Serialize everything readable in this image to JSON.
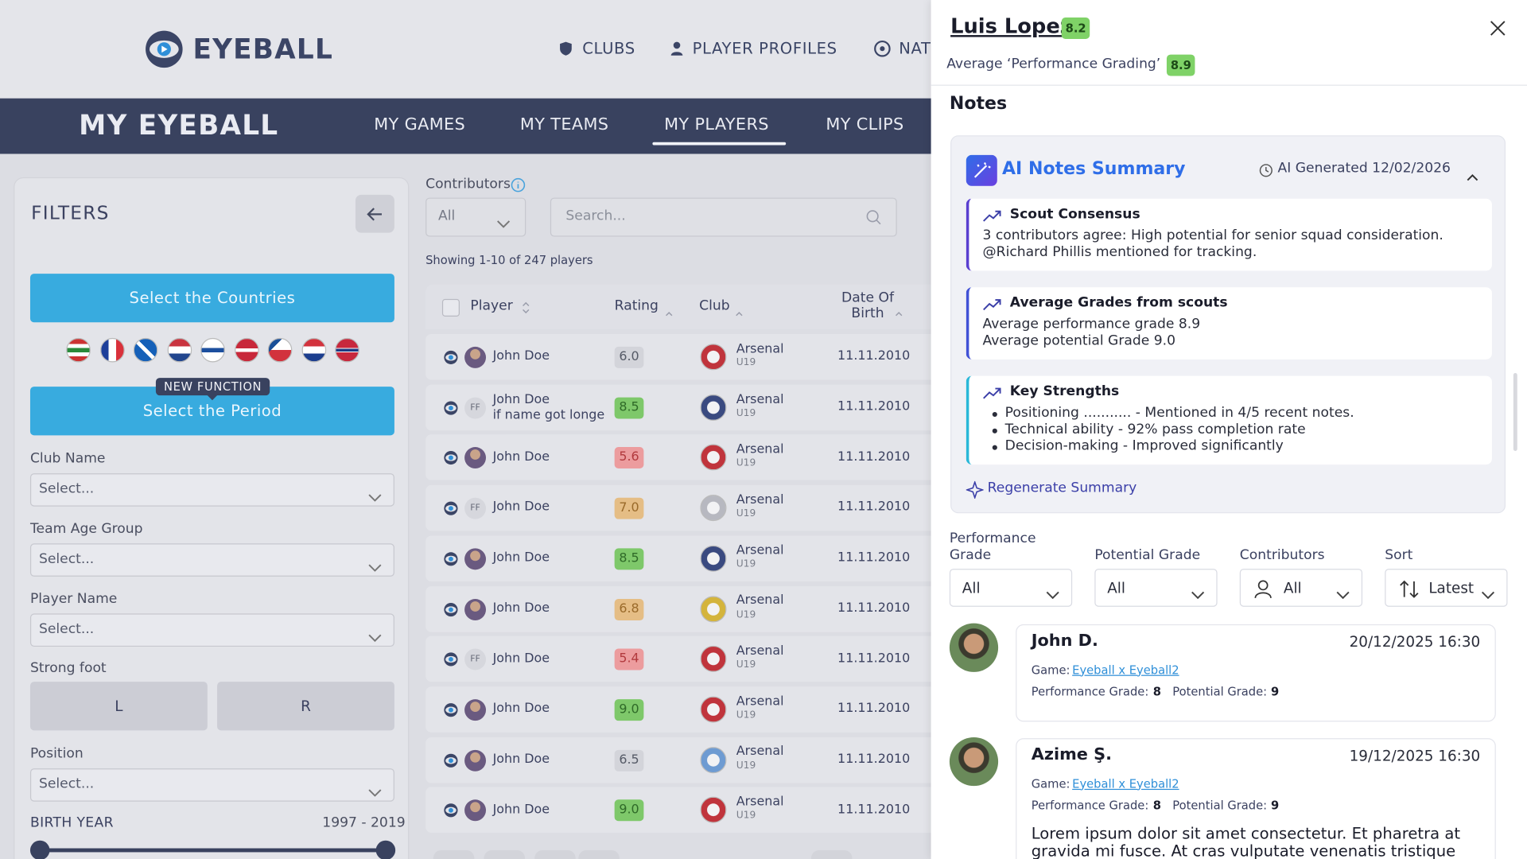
{
  "header": {
    "logo": "EYEBALL",
    "nav": [
      "CLUBS",
      "PLAYER PROFILES",
      "NAT"
    ]
  },
  "subnav": {
    "title": "MY EYEBALL",
    "tabs": [
      "MY GAMES",
      "MY TEAMS",
      "MY PLAYERS",
      "MY CLIPS"
    ],
    "active": 2
  },
  "filters": {
    "title": "FILTERS",
    "countries_button": "Select the Countries",
    "badge": "NEW FUNCTION",
    "period_button": "Select the Period",
    "selects": [
      {
        "label": "Club Name",
        "placeholder": "Select..."
      },
      {
        "label": "Team Age Group",
        "placeholder": "Select..."
      },
      {
        "label": "Player Name",
        "placeholder": "Select..."
      }
    ],
    "strong_foot": {
      "label": "Strong foot",
      "options": [
        "L",
        "R"
      ]
    },
    "position": {
      "label": "Position",
      "placeholder": "Select..."
    },
    "birth_year": {
      "label": "BIRTH YEAR",
      "range": "1997 - 2019"
    }
  },
  "table": {
    "contributors_label": "Contributors",
    "contributors_value": "All",
    "search_placeholder": "Search...",
    "showing": "Showing 1-10 of 247 players",
    "columns": [
      "Player",
      "Rating",
      "Club",
      "Date Of Birth"
    ],
    "rows": [
      {
        "name": "John Doe",
        "rating": "6.0",
        "tone": "grey",
        "club": "Arsenal",
        "team": "U19",
        "dob": "11.11.2010"
      },
      {
        "name": "John Doe",
        "name_extra": "if name got longe",
        "initials": "FF",
        "rating": "8.5",
        "tone": "green",
        "club": "Arsenal",
        "team": "U19",
        "dob": "11.11.2010"
      },
      {
        "name": "John Doe",
        "rating": "5.6",
        "tone": "red",
        "club": "Arsenal",
        "team": "U19",
        "dob": "11.11.2010"
      },
      {
        "name": "John Doe",
        "initials": "FF",
        "rating": "7.0",
        "tone": "orange",
        "club": "Arsenal",
        "team": "U19",
        "dob": "11.11.2010"
      },
      {
        "name": "John Doe",
        "rating": "8.5",
        "tone": "green",
        "club": "Arsenal",
        "team": "U19",
        "dob": "11.11.2010"
      },
      {
        "name": "John Doe",
        "rating": "6.8",
        "tone": "orange",
        "club": "Arsenal",
        "team": "U19",
        "dob": "11.11.2010"
      },
      {
        "name": "John Doe",
        "initials": "FF",
        "rating": "5.4",
        "tone": "red",
        "club": "Arsenal",
        "team": "U19",
        "dob": "11.11.2010"
      },
      {
        "name": "John Doe",
        "rating": "9.0",
        "tone": "green",
        "club": "Arsenal",
        "team": "U19",
        "dob": "11.11.2010"
      },
      {
        "name": "John Doe",
        "rating": "6.5",
        "tone": "grey",
        "club": "Arsenal",
        "team": "U19",
        "dob": "11.11.2010"
      },
      {
        "name": "John Doe",
        "rating": "9.0",
        "tone": "green",
        "club": "Arsenal",
        "team": "U19",
        "dob": "11.11.2010"
      }
    ]
  },
  "panel": {
    "player": "Luis Lopez",
    "rating": "8.2",
    "avg_label": "Average ‘Performance Grading’",
    "avg_value": "8.9",
    "notes_title": "Notes",
    "summary": {
      "ai": "AI",
      "title": "Notes Summary",
      "generated": "AI Generated 12/02/2026",
      "cards": [
        {
          "title": "Scout Consensus",
          "lines": [
            "3 contributors agree: High potential for senior squad consideration. @Richard Phillis mentioned for tracking."
          ]
        },
        {
          "title": "Average Grades from scouts",
          "lines": [
            "Average performance grade 8.9",
            "Average potential Grade 9.0"
          ]
        },
        {
          "title": "Key Strengths",
          "bullets": [
            "Positioning ........... - Mentioned in 4/5 recent notes.",
            "Technical ability - 92% pass completion rate",
            "Decision-making - Improved significantly"
          ]
        }
      ],
      "regenerate": "Regenerate Summary"
    },
    "filters": [
      {
        "label": "Performance Grade",
        "value": "All"
      },
      {
        "label": "Potential Grade",
        "value": "All"
      },
      {
        "label": "Contributors",
        "value": "All"
      },
      {
        "label": "Sort",
        "value": "Latest"
      }
    ],
    "notes": [
      {
        "author": "John D.",
        "date": "20/12/2025 16:30",
        "game_label": "Game:",
        "game": "Eyeball x Eyeball2",
        "perf_label": "Performance Grade:",
        "perf": "8",
        "pot_label": "Potential Grade:",
        "pot": "9"
      },
      {
        "author": "Azime Ş.",
        "date": "19/12/2025 16:30",
        "game_label": "Game:",
        "game": "Eyeball x Eyeball2",
        "perf_label": "Performance Grade:",
        "perf": "8",
        "pot_label": "Potential Grade:",
        "pot": "9",
        "text": "Lorem ipsum dolor sit amet consectetur. Et pharetra at gravida mi fusce. At cras vulputate venenatis tristique"
      }
    ]
  }
}
